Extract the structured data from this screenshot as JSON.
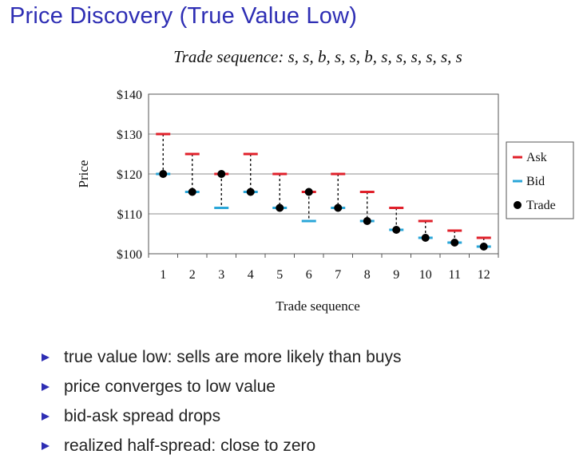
{
  "slide": {
    "title": "Price Discovery (True Value Low)",
    "bullets": [
      "true value low: sells are more likely than buys",
      "price converges to low value",
      "bid-ask spread drops",
      "realized half-spread: close to zero"
    ]
  },
  "colors": {
    "title": "#2e2eb4",
    "ask": "#e0202a",
    "bid": "#2aa6d8",
    "trade": "#000000",
    "bullet": "#2e2eb4"
  },
  "chart_data": {
    "type": "scatter",
    "title": "Trade sequence: s, s, b, s, s, b, s, s, s, s, s, s",
    "xlabel": "Trade sequence",
    "ylabel": "Price",
    "categories": [
      1,
      2,
      3,
      4,
      5,
      6,
      7,
      8,
      9,
      10,
      11,
      12
    ],
    "ylim": [
      100,
      140
    ],
    "yticks": [
      100,
      110,
      120,
      130,
      140
    ],
    "ytick_labels": [
      "$100",
      "$110",
      "$120",
      "$130",
      "$140"
    ],
    "grid": true,
    "legend": "right",
    "series": [
      {
        "name": "Ask",
        "marker": "dash",
        "values": [
          130,
          125,
          120,
          125,
          120,
          115.5,
          120,
          115.5,
          111.5,
          108.2,
          105.8,
          104
        ]
      },
      {
        "name": "Bid",
        "marker": "dash",
        "values": [
          120,
          115.5,
          111.5,
          115.5,
          111.5,
          108.2,
          111.5,
          108.2,
          106,
          104,
          102.8,
          101.8
        ]
      },
      {
        "name": "Trade",
        "marker": "circle",
        "values": [
          120,
          115.5,
          120,
          115.5,
          111.5,
          115.5,
          111.5,
          108.2,
          106,
          104,
          102.8,
          101.8
        ]
      }
    ]
  }
}
